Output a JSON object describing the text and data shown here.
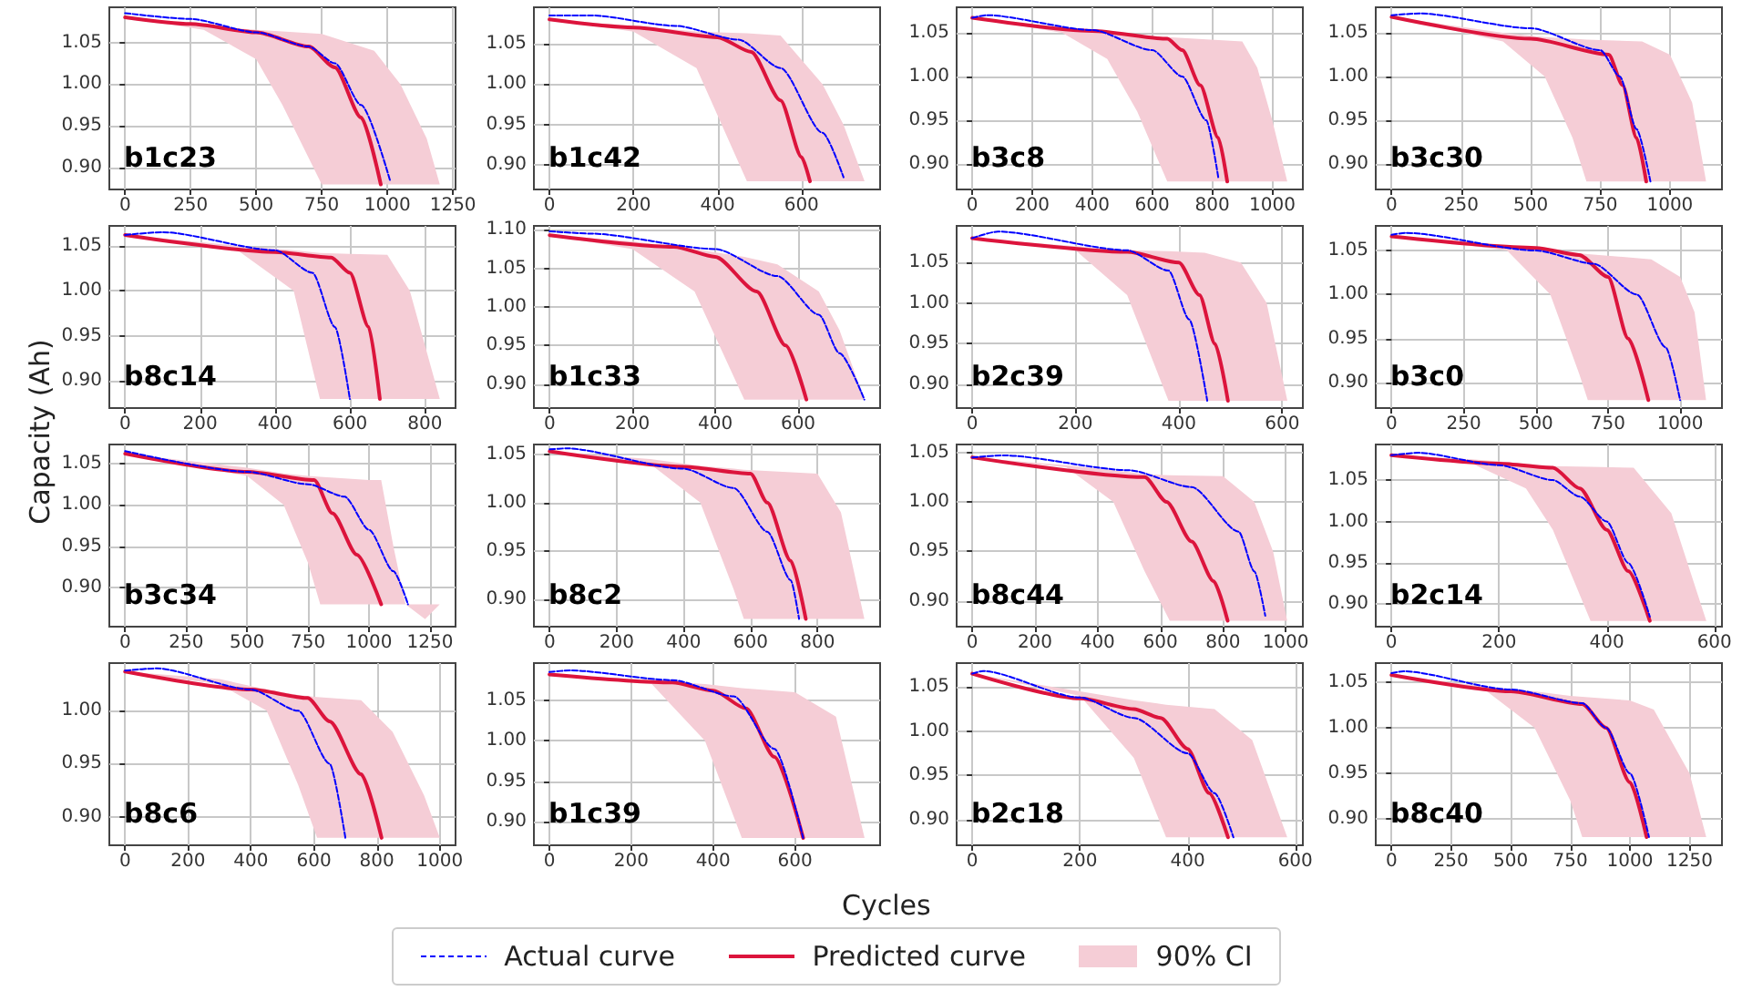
{
  "chart_data": [
    {
      "type": "line",
      "title": "b1c23",
      "legend": "bottom",
      "grid": true,
      "marker": "none",
      "xlim": [
        -60,
        1260
      ],
      "xticks": [
        0,
        250,
        500,
        750,
        1000,
        1250
      ],
      "ylim": [
        0.874,
        1.092
      ],
      "yticks": [
        {
          "value": 0.9,
          "label": "0.90"
        },
        {
          "value": 0.95,
          "label": "0.95"
        },
        {
          "value": 1.0,
          "label": "1.00"
        },
        {
          "value": 1.05,
          "label": "1.05"
        }
      ],
      "series": [
        {
          "name": "90% CI",
          "color": "#f5cdd6",
          "values": [
            null,
            null,
            null,
            null,
            null,
            null,
            null,
            null,
            null
          ],
          "x": [
            0,
            300,
            500,
            600,
            750,
            950,
            1050,
            1150,
            1200
          ],
          "lower": [
            1.08,
            1.065,
            1.03,
            0.975,
            0.88,
            0.88,
            0.88,
            0.88,
            0.88
          ],
          "upper": [
            1.08,
            1.07,
            1.065,
            1.063,
            1.06,
            1.04,
            1.0,
            0.935,
            0.88
          ]
        },
        {
          "name": "Actual curve",
          "color": "#0000ff",
          "line_style": "dashed",
          "x": [
            0,
            250,
            500,
            700,
            800,
            900,
            1010
          ],
          "values": [
            1.085,
            1.078,
            1.062,
            1.045,
            1.025,
            0.975,
            0.885
          ]
        },
        {
          "name": "Predicted curve",
          "color": "#dc143c",
          "line_style": "solid",
          "x": [
            0,
            250,
            500,
            700,
            800,
            900,
            975
          ],
          "values": [
            1.08,
            1.072,
            1.062,
            1.045,
            1.02,
            0.96,
            0.88
          ]
        }
      ]
    },
    {
      "type": "line",
      "title": "b1c42",
      "grid": true,
      "marker": "none",
      "xlim": [
        -37,
        787
      ],
      "xticks": [
        0,
        200,
        400,
        600
      ],
      "ylim": [
        0.87,
        1.095
      ],
      "yticks": [
        {
          "value": 0.9,
          "label": "0.90"
        },
        {
          "value": 0.95,
          "label": "0.95"
        },
        {
          "value": 1.0,
          "label": "1.00"
        },
        {
          "value": 1.05,
          "label": "1.05"
        }
      ],
      "series": [
        {
          "color": "#f5cdd6",
          "values": [
            null,
            null,
            null,
            null,
            null,
            null,
            null,
            null
          ],
          "x": [
            0,
            200,
            350,
            470,
            550,
            650,
            700,
            750
          ],
          "lower": [
            1.08,
            1.065,
            1.02,
            0.88,
            0.88,
            0.88,
            0.88,
            0.88
          ],
          "upper": [
            1.08,
            1.072,
            1.065,
            1.063,
            1.06,
            1.0,
            0.95,
            0.88
          ]
        },
        {
          "color": "#0000ff",
          "line_style": "dashed",
          "x": [
            0,
            100,
            300,
            450,
            550,
            650,
            700
          ],
          "values": [
            1.085,
            1.085,
            1.072,
            1.055,
            1.02,
            0.94,
            0.885
          ]
        },
        {
          "color": "#dc143c",
          "line_style": "solid",
          "x": [
            0,
            200,
            400,
            480,
            550,
            600,
            620
          ],
          "values": [
            1.08,
            1.07,
            1.058,
            1.04,
            0.98,
            0.91,
            0.88
          ]
        }
      ]
    },
    {
      "type": "line",
      "title": "b3c8",
      "grid": true,
      "marker": "none",
      "xlim": [
        -52,
        1102
      ],
      "xticks": [
        0,
        200,
        400,
        600,
        800,
        1000
      ],
      "ylim": [
        0.871,
        1.079
      ],
      "yticks": [
        {
          "value": 0.9,
          "label": "0.90"
        },
        {
          "value": 0.95,
          "label": "0.95"
        },
        {
          "value": 1.0,
          "label": "1.00"
        },
        {
          "value": 1.05,
          "label": "1.05"
        }
      ],
      "series": [
        {
          "color": "#f5cdd6",
          "values": [
            null,
            null,
            null,
            null,
            null,
            null,
            null,
            null,
            null
          ],
          "x": [
            0,
            300,
            450,
            550,
            650,
            900,
            950,
            1000,
            1050
          ],
          "lower": [
            1.067,
            1.05,
            1.02,
            0.96,
            0.88,
            0.88,
            0.88,
            0.88,
            0.88
          ],
          "upper": [
            1.067,
            1.055,
            1.05,
            1.047,
            1.045,
            1.04,
            1.01,
            0.95,
            0.88
          ]
        },
        {
          "color": "#0000ff",
          "line_style": "dashed",
          "x": [
            0,
            50,
            400,
            600,
            700,
            780,
            820
          ],
          "values": [
            1.067,
            1.07,
            1.053,
            1.03,
            1.0,
            0.95,
            0.885
          ]
        },
        {
          "color": "#dc143c",
          "line_style": "solid",
          "x": [
            0,
            400,
            650,
            700,
            760,
            820,
            850
          ],
          "values": [
            1.067,
            1.052,
            1.043,
            1.03,
            0.99,
            0.93,
            0.88
          ]
        }
      ]
    },
    {
      "type": "line",
      "title": "b3c30",
      "grid": true,
      "marker": "none",
      "xlim": [
        -57,
        1187
      ],
      "xticks": [
        0,
        250,
        500,
        750,
        1000
      ],
      "ylim": [
        0.871,
        1.079
      ],
      "yticks": [
        {
          "value": 0.9,
          "label": "0.90"
        },
        {
          "value": 0.95,
          "label": "0.95"
        },
        {
          "value": 1.0,
          "label": "1.00"
        },
        {
          "value": 1.05,
          "label": "1.05"
        }
      ],
      "series": [
        {
          "color": "#f5cdd6",
          "values": [
            null,
            null,
            null,
            null,
            null,
            null,
            null,
            null,
            null
          ],
          "x": [
            0,
            400,
            550,
            650,
            700,
            900,
            1000,
            1080,
            1130
          ],
          "lower": [
            1.068,
            1.04,
            1.0,
            0.93,
            0.88,
            0.88,
            0.88,
            0.88,
            0.88
          ],
          "upper": [
            1.068,
            1.05,
            1.045,
            1.043,
            1.042,
            1.04,
            1.025,
            0.97,
            0.88
          ]
        },
        {
          "color": "#0000ff",
          "line_style": "dashed",
          "x": [
            0,
            100,
            500,
            750,
            820,
            880,
            930
          ],
          "values": [
            1.07,
            1.072,
            1.055,
            1.03,
            1.0,
            0.94,
            0.88
          ]
        },
        {
          "color": "#dc143c",
          "line_style": "solid",
          "x": [
            0,
            500,
            780,
            830,
            880,
            915
          ],
          "values": [
            1.068,
            1.043,
            1.025,
            0.99,
            0.93,
            0.88
          ]
        }
      ]
    },
    {
      "type": "line",
      "title": "b8c14",
      "grid": true,
      "marker": "none",
      "xlim": [
        -42,
        882
      ],
      "xticks": [
        0,
        200,
        400,
        600,
        800
      ],
      "ylim": [
        0.87,
        1.072
      ],
      "yticks": [
        {
          "value": 0.9,
          "label": "0.90"
        },
        {
          "value": 0.95,
          "label": "0.95"
        },
        {
          "value": 1.0,
          "label": "1.00"
        },
        {
          "value": 1.05,
          "label": "1.05"
        }
      ],
      "series": [
        {
          "color": "#f5cdd6",
          "values": [
            null,
            null,
            null,
            null,
            null,
            null,
            null,
            null
          ],
          "x": [
            0,
            300,
            450,
            520,
            600,
            700,
            760,
            840
          ],
          "lower": [
            1.062,
            1.045,
            1.0,
            0.88,
            0.88,
            0.88,
            0.88,
            0.88
          ],
          "upper": [
            1.062,
            1.05,
            1.045,
            1.042,
            1.041,
            1.04,
            1.0,
            0.88
          ]
        },
        {
          "color": "#0000ff",
          "line_style": "dashed",
          "x": [
            0,
            100,
            400,
            500,
            560,
            600
          ],
          "values": [
            1.062,
            1.065,
            1.045,
            1.02,
            0.96,
            0.88
          ]
        },
        {
          "color": "#dc143c",
          "line_style": "solid",
          "x": [
            0,
            400,
            550,
            600,
            650,
            680
          ],
          "values": [
            1.062,
            1.043,
            1.037,
            1.02,
            0.96,
            0.88
          ]
        }
      ]
    },
    {
      "type": "line",
      "title": "b1c33",
      "grid": true,
      "marker": "none",
      "xlim": [
        -38,
        798
      ],
      "xticks": [
        0,
        200,
        400,
        600
      ],
      "ylim": [
        0.869,
        1.105
      ],
      "yticks": [
        {
          "value": 0.9,
          "label": "0.90"
        },
        {
          "value": 0.95,
          "label": "0.95"
        },
        {
          "value": 1.0,
          "label": "1.00"
        },
        {
          "value": 1.05,
          "label": "1.05"
        },
        {
          "value": 1.1,
          "label": "1.10"
        }
      ],
      "series": [
        {
          "color": "#f5cdd6",
          "values": [
            null,
            null,
            null,
            null,
            null,
            null,
            null,
            null
          ],
          "x": [
            0,
            200,
            350,
            470,
            550,
            650,
            700,
            760
          ],
          "lower": [
            1.093,
            1.075,
            1.02,
            0.88,
            0.88,
            0.88,
            0.88,
            0.88
          ],
          "upper": [
            1.093,
            1.085,
            1.075,
            1.065,
            1.055,
            1.02,
            0.97,
            0.88
          ]
        },
        {
          "color": "#0000ff",
          "line_style": "dashed",
          "x": [
            0,
            100,
            400,
            550,
            650,
            700,
            760
          ],
          "values": [
            1.098,
            1.095,
            1.075,
            1.04,
            0.99,
            0.94,
            0.88
          ]
        },
        {
          "color": "#dc143c",
          "line_style": "solid",
          "x": [
            0,
            300,
            400,
            500,
            570,
            620
          ],
          "values": [
            1.093,
            1.078,
            1.065,
            1.02,
            0.95,
            0.88
          ]
        }
      ]
    },
    {
      "type": "line",
      "title": "b2c39",
      "grid": true,
      "marker": "none",
      "xlim": [
        -30,
        640
      ],
      "xticks": [
        0,
        200,
        400,
        600
      ],
      "ylim": [
        0.871,
        1.095
      ],
      "yticks": [
        {
          "value": 0.9,
          "label": "0.90"
        },
        {
          "value": 0.95,
          "label": "0.95"
        },
        {
          "value": 1.0,
          "label": "1.00"
        },
        {
          "value": 1.05,
          "label": "1.05"
        }
      ],
      "series": [
        {
          "color": "#f5cdd6",
          "values": [
            null,
            null,
            null,
            null,
            null,
            null,
            null,
            null
          ],
          "x": [
            0,
            200,
            300,
            380,
            450,
            520,
            570,
            610
          ],
          "lower": [
            1.08,
            1.065,
            1.01,
            0.88,
            0.88,
            0.88,
            0.88,
            0.88
          ],
          "upper": [
            1.08,
            1.07,
            1.065,
            1.064,
            1.062,
            1.05,
            1.0,
            0.88
          ]
        },
        {
          "color": "#0000ff",
          "line_style": "dashed",
          "x": [
            0,
            50,
            300,
            380,
            420,
            455
          ],
          "values": [
            1.08,
            1.088,
            1.065,
            1.04,
            0.98,
            0.88
          ]
        },
        {
          "color": "#dc143c",
          "line_style": "solid",
          "x": [
            0,
            300,
            400,
            440,
            470,
            495
          ],
          "values": [
            1.08,
            1.063,
            1.05,
            1.01,
            0.95,
            0.88
          ]
        }
      ]
    },
    {
      "type": "line",
      "title": "b3c0",
      "grid": true,
      "marker": "none",
      "xlim": [
        -55,
        1145
      ],
      "xticks": [
        0,
        250,
        500,
        750,
        1000
      ],
      "ylim": [
        0.871,
        1.078
      ],
      "yticks": [
        {
          "value": 0.9,
          "label": "0.90"
        },
        {
          "value": 0.95,
          "label": "0.95"
        },
        {
          "value": 1.0,
          "label": "1.00"
        },
        {
          "value": 1.05,
          "label": "1.05"
        }
      ],
      "series": [
        {
          "color": "#f5cdd6",
          "values": [
            null,
            null,
            null,
            null,
            null,
            null,
            null,
            null,
            null
          ],
          "x": [
            0,
            400,
            550,
            650,
            680,
            900,
            1000,
            1050,
            1090
          ],
          "lower": [
            1.066,
            1.05,
            1.0,
            0.91,
            0.88,
            0.88,
            0.88,
            0.88,
            0.88
          ],
          "upper": [
            1.066,
            1.055,
            1.05,
            1.047,
            1.046,
            1.04,
            1.02,
            0.98,
            0.88
          ]
        },
        {
          "color": "#0000ff",
          "line_style": "dashed",
          "x": [
            0,
            50,
            500,
            700,
            850,
            950,
            1000
          ],
          "values": [
            1.068,
            1.07,
            1.05,
            1.035,
            1.0,
            0.94,
            0.88
          ]
        },
        {
          "color": "#dc143c",
          "line_style": "solid",
          "x": [
            0,
            500,
            650,
            750,
            820,
            890
          ],
          "values": [
            1.066,
            1.053,
            1.045,
            1.02,
            0.95,
            0.88
          ]
        }
      ]
    },
    {
      "type": "line",
      "title": "b3c34",
      "ylabel": "Capacity (Ah)",
      "grid": true,
      "marker": "none",
      "xlim": [
        -65,
        1355
      ],
      "xticks": [
        0,
        250,
        500,
        750,
        1000,
        1250
      ],
      "ylim": [
        0.853,
        1.073
      ],
      "yticks": [
        {
          "value": 0.9,
          "label": "0.90"
        },
        {
          "value": 0.95,
          "label": "0.95"
        },
        {
          "value": 1.0,
          "label": "1.00"
        },
        {
          "value": 1.05,
          "label": "1.05"
        }
      ],
      "series": [
        {
          "color": "#f5cdd6",
          "values": [
            null,
            null,
            null,
            null,
            null,
            null,
            null,
            null,
            null,
            null,
            null
          ],
          "x": [
            0,
            500,
            650,
            750,
            800,
            1000,
            1050,
            1100,
            1150,
            1230,
            1290
          ],
          "lower": [
            1.062,
            1.035,
            1.0,
            0.93,
            0.88,
            0.88,
            0.88,
            0.88,
            0.88,
            0.862,
            0.88
          ],
          "upper": [
            1.062,
            1.045,
            1.038,
            1.035,
            1.034,
            1.03,
            1.03,
            0.95,
            0.88,
            0.88,
            0.88
          ]
        },
        {
          "color": "#0000ff",
          "line_style": "dashed",
          "x": [
            0,
            500,
            750,
            900,
            1000,
            1100,
            1160
          ],
          "values": [
            1.065,
            1.04,
            1.025,
            1.01,
            0.97,
            0.92,
            0.88
          ]
        },
        {
          "color": "#dc143c",
          "line_style": "solid",
          "x": [
            0,
            500,
            775,
            850,
            950,
            1050
          ],
          "values": [
            1.062,
            1.04,
            1.03,
            0.99,
            0.94,
            0.88
          ]
        }
      ]
    },
    {
      "type": "line",
      "title": "b8c2",
      "grid": true,
      "marker": "none",
      "xlim": [
        -47,
        987
      ],
      "xticks": [
        0,
        200,
        400,
        600,
        800
      ],
      "ylim": [
        0.872,
        1.06
      ],
      "yticks": [
        {
          "value": 0.9,
          "label": "0.90"
        },
        {
          "value": 0.95,
          "label": "0.95"
        },
        {
          "value": 1.0,
          "label": "1.00"
        },
        {
          "value": 1.05,
          "label": "1.05"
        }
      ],
      "series": [
        {
          "color": "#f5cdd6",
          "values": [
            null,
            null,
            null,
            null,
            null,
            null,
            null,
            null
          ],
          "x": [
            0,
            300,
            450,
            550,
            580,
            800,
            870,
            940
          ],
          "lower": [
            1.053,
            1.04,
            1.0,
            0.91,
            0.88,
            0.88,
            0.88,
            0.88
          ],
          "upper": [
            1.053,
            1.045,
            1.038,
            1.035,
            1.034,
            1.03,
            0.99,
            0.88
          ]
        },
        {
          "color": "#0000ff",
          "line_style": "dashed",
          "x": [
            0,
            50,
            400,
            550,
            650,
            720,
            745
          ],
          "values": [
            1.055,
            1.056,
            1.035,
            1.015,
            0.97,
            0.92,
            0.88
          ]
        },
        {
          "color": "#dc143c",
          "line_style": "solid",
          "x": [
            0,
            400,
            600,
            650,
            720,
            765
          ],
          "values": [
            1.053,
            1.037,
            1.03,
            1.0,
            0.94,
            0.88
          ]
        }
      ]
    },
    {
      "type": "line",
      "title": "b8c44",
      "grid": true,
      "marker": "none",
      "xlim": [
        -50,
        1055
      ],
      "xticks": [
        0,
        200,
        400,
        600,
        800,
        1000
      ],
      "ylim": [
        0.874,
        1.058
      ],
      "yticks": [
        {
          "value": 0.9,
          "label": "0.90"
        },
        {
          "value": 0.95,
          "label": "0.95"
        },
        {
          "value": 1.0,
          "label": "1.00"
        },
        {
          "value": 1.05,
          "label": "1.05"
        }
      ],
      "series": [
        {
          "color": "#f5cdd6",
          "values": [
            null,
            null,
            null,
            null,
            null,
            null,
            null,
            null,
            null
          ],
          "x": [
            0,
            300,
            450,
            550,
            630,
            800,
            900,
            960,
            1005
          ],
          "lower": [
            1.045,
            1.035,
            1.0,
            0.93,
            0.88,
            0.88,
            0.88,
            0.88,
            0.88
          ],
          "upper": [
            1.045,
            1.037,
            1.032,
            1.028,
            1.027,
            1.026,
            1.0,
            0.95,
            0.88
          ]
        },
        {
          "color": "#0000ff",
          "line_style": "dashed",
          "x": [
            0,
            100,
            500,
            700,
            850,
            900,
            935
          ],
          "values": [
            1.045,
            1.047,
            1.032,
            1.015,
            0.97,
            0.93,
            0.885
          ]
        },
        {
          "color": "#dc143c",
          "line_style": "solid",
          "x": [
            0,
            550,
            620,
            700,
            770,
            815
          ],
          "values": [
            1.045,
            1.025,
            1.0,
            0.96,
            0.92,
            0.88
          ]
        }
      ]
    },
    {
      "type": "line",
      "title": "b2c14",
      "grid": true,
      "marker": "none",
      "xlim": [
        -29,
        614
      ],
      "xticks": [
        0,
        200,
        400,
        600
      ],
      "ylim": [
        0.873,
        1.093
      ],
      "yticks": [
        {
          "value": 0.9,
          "label": "0.90"
        },
        {
          "value": 0.95,
          "label": "0.95"
        },
        {
          "value": 1.0,
          "label": "1.00"
        },
        {
          "value": 1.05,
          "label": "1.05"
        }
      ],
      "series": [
        {
          "color": "#f5cdd6",
          "values": [
            null,
            null,
            null,
            null,
            null,
            null,
            null,
            null
          ],
          "x": [
            0,
            150,
            250,
            300,
            370,
            450,
            520,
            585
          ],
          "lower": [
            1.08,
            1.07,
            1.04,
            0.99,
            0.88,
            0.88,
            0.88,
            0.88
          ],
          "upper": [
            1.08,
            1.075,
            1.07,
            1.067,
            1.066,
            1.065,
            1.01,
            0.88
          ]
        },
        {
          "color": "#0000ff",
          "line_style": "dashed",
          "x": [
            0,
            50,
            200,
            300,
            350,
            400,
            440,
            480
          ],
          "values": [
            1.08,
            1.083,
            1.068,
            1.05,
            1.03,
            1.0,
            0.95,
            0.885
          ]
        },
        {
          "color": "#dc143c",
          "line_style": "solid",
          "x": [
            0,
            200,
            300,
            350,
            400,
            440,
            480
          ],
          "values": [
            1.08,
            1.07,
            1.065,
            1.04,
            0.99,
            0.94,
            0.88
          ]
        }
      ]
    },
    {
      "type": "line",
      "title": "b8c6",
      "grid": true,
      "marker": "none",
      "xlim": [
        -50,
        1050
      ],
      "xticks": [
        0,
        200,
        400,
        600,
        800,
        1000
      ],
      "ylim": [
        0.873,
        1.045
      ],
      "yticks": [
        {
          "value": 0.9,
          "label": "0.90"
        },
        {
          "value": 0.95,
          "label": "0.95"
        },
        {
          "value": 1.0,
          "label": "1.00"
        }
      ],
      "series": [
        {
          "color": "#f5cdd6",
          "values": [
            null,
            null,
            null,
            null,
            null,
            null,
            null,
            null,
            null
          ],
          "x": [
            0,
            300,
            450,
            550,
            610,
            750,
            850,
            950,
            1000
          ],
          "lower": [
            1.037,
            1.025,
            1.0,
            0.93,
            0.88,
            0.88,
            0.88,
            0.88,
            0.88
          ],
          "upper": [
            1.037,
            1.03,
            1.02,
            1.015,
            1.013,
            1.01,
            0.98,
            0.92,
            0.88
          ]
        },
        {
          "color": "#0000ff",
          "line_style": "dashed",
          "x": [
            0,
            100,
            400,
            550,
            650,
            700
          ],
          "values": [
            1.038,
            1.04,
            1.02,
            1.0,
            0.95,
            0.88
          ]
        },
        {
          "color": "#dc143c",
          "line_style": "solid",
          "x": [
            0,
            400,
            580,
            650,
            750,
            815
          ],
          "values": [
            1.037,
            1.02,
            1.012,
            0.99,
            0.94,
            0.88
          ]
        }
      ]
    },
    {
      "type": "line",
      "title": "b1c39",
      "xlabel": "Cycles",
      "grid": true,
      "marker": "none",
      "xlim": [
        -38,
        808
      ],
      "xticks": [
        0,
        200,
        400,
        600
      ],
      "ylim": [
        0.871,
        1.096
      ],
      "yticks": [
        {
          "value": 0.9,
          "label": "0.90"
        },
        {
          "value": 0.95,
          "label": "0.95"
        },
        {
          "value": 1.0,
          "label": "1.00"
        },
        {
          "value": 1.05,
          "label": "1.05"
        }
      ],
      "series": [
        {
          "color": "#f5cdd6",
          "values": [
            null,
            null,
            null,
            null,
            null,
            null,
            null
          ],
          "x": [
            0,
            250,
            380,
            470,
            600,
            700,
            770
          ],
          "lower": [
            1.082,
            1.07,
            1.0,
            0.88,
            0.88,
            0.88,
            0.88
          ],
          "upper": [
            1.082,
            1.075,
            1.07,
            1.065,
            1.06,
            1.03,
            0.88
          ]
        },
        {
          "color": "#0000ff",
          "line_style": "dashed",
          "x": [
            0,
            50,
            300,
            450,
            550,
            620
          ],
          "values": [
            1.085,
            1.087,
            1.075,
            1.055,
            0.99,
            0.88
          ]
        },
        {
          "color": "#dc143c",
          "line_style": "solid",
          "x": [
            0,
            300,
            400,
            480,
            550,
            620
          ],
          "values": [
            1.082,
            1.072,
            1.062,
            1.04,
            0.98,
            0.88
          ]
        }
      ]
    },
    {
      "type": "line",
      "title": "b2c18",
      "grid": true,
      "marker": "none",
      "xlim": [
        -29,
        614
      ],
      "xticks": [
        0,
        200,
        400,
        600
      ],
      "ylim": [
        0.871,
        1.077
      ],
      "yticks": [
        {
          "value": 0.9,
          "label": "0.90"
        },
        {
          "value": 0.95,
          "label": "0.95"
        },
        {
          "value": 1.0,
          "label": "1.00"
        },
        {
          "value": 1.05,
          "label": "1.05"
        }
      ],
      "series": [
        {
          "color": "#f5cdd6",
          "values": [
            null,
            null,
            null,
            null,
            null,
            null,
            null
          ],
          "x": [
            0,
            200,
            300,
            360,
            450,
            520,
            585
          ],
          "lower": [
            1.065,
            1.04,
            0.97,
            0.88,
            0.88,
            0.88,
            0.88
          ],
          "upper": [
            1.065,
            1.045,
            1.035,
            1.03,
            1.025,
            0.99,
            0.88
          ]
        },
        {
          "color": "#0000ff",
          "line_style": "dashed",
          "x": [
            0,
            20,
            200,
            300,
            400,
            450,
            485
          ],
          "values": [
            1.065,
            1.068,
            1.038,
            1.015,
            0.975,
            0.93,
            0.88
          ]
        },
        {
          "color": "#dc143c",
          "line_style": "solid",
          "x": [
            0,
            200,
            300,
            350,
            400,
            440,
            475
          ],
          "values": [
            1.065,
            1.037,
            1.025,
            1.015,
            0.98,
            0.93,
            0.88
          ]
        }
      ]
    },
    {
      "type": "line",
      "title": "b8c40",
      "grid": true,
      "marker": "none",
      "xlim": [
        -66,
        1386
      ],
      "xticks": [
        0,
        250,
        500,
        750,
        1000,
        1250
      ],
      "ylim": [
        0.871,
        1.071
      ],
      "yticks": [
        {
          "value": 0.9,
          "label": "0.90"
        },
        {
          "value": 0.95,
          "label": "0.95"
        },
        {
          "value": 1.0,
          "label": "1.00"
        },
        {
          "value": 1.05,
          "label": "1.05"
        }
      ],
      "series": [
        {
          "color": "#f5cdd6",
          "values": [
            null,
            null,
            null,
            null,
            null,
            null,
            null,
            null,
            null
          ],
          "x": [
            0,
            400,
            600,
            750,
            800,
            1000,
            1100,
            1250,
            1320
          ],
          "lower": [
            1.058,
            1.04,
            1.0,
            0.92,
            0.88,
            0.88,
            0.88,
            0.88,
            0.88
          ],
          "upper": [
            1.058,
            1.045,
            1.04,
            1.035,
            1.034,
            1.03,
            1.02,
            0.95,
            0.88
          ]
        },
        {
          "color": "#0000ff",
          "line_style": "dashed",
          "x": [
            0,
            50,
            500,
            800,
            900,
            1000,
            1080
          ],
          "values": [
            1.06,
            1.062,
            1.042,
            1.027,
            1.0,
            0.95,
            0.88
          ]
        },
        {
          "color": "#dc143c",
          "line_style": "solid",
          "x": [
            0,
            500,
            800,
            900,
            1000,
            1070
          ],
          "values": [
            1.058,
            1.04,
            1.026,
            1.0,
            0.94,
            0.88
          ]
        }
      ]
    }
  ]
}
